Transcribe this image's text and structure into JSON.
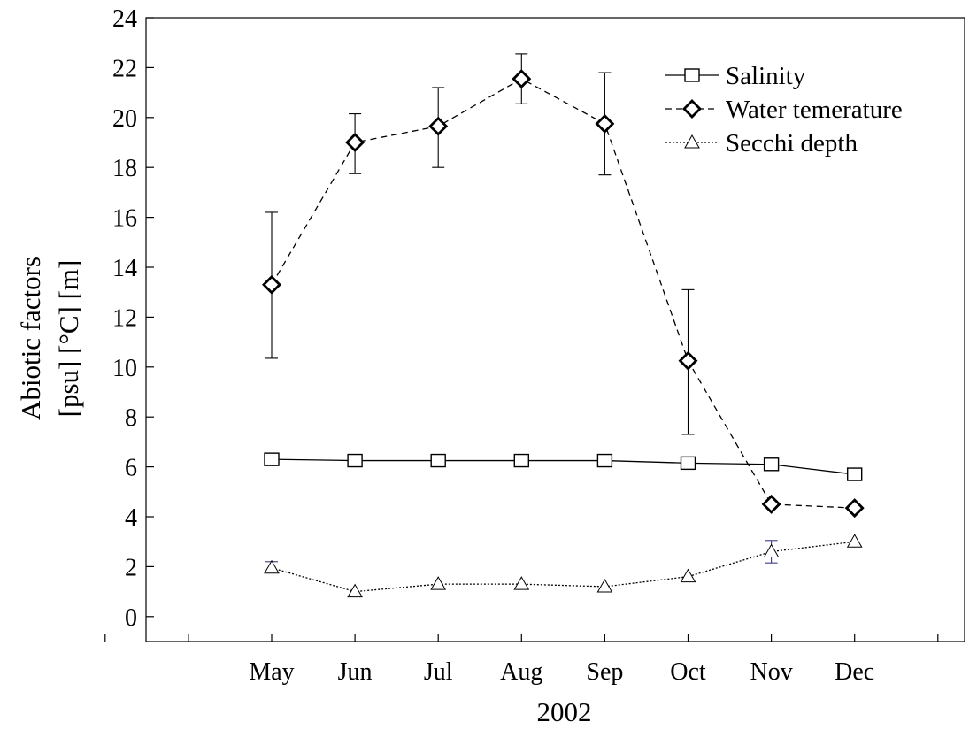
{
  "chart_data": {
    "type": "line",
    "xlabel": "2002",
    "ylabel_lines": [
      "Abiotic factors",
      "[psu] [°C] [m]"
    ],
    "categories": [
      "May",
      "Jun",
      "Jul",
      "Aug",
      "Sep",
      "Oct",
      "Nov",
      "Dec"
    ],
    "ylim": [
      -1,
      24
    ],
    "yticks": [
      0,
      2,
      4,
      6,
      8,
      10,
      12,
      14,
      16,
      18,
      20,
      22,
      24
    ],
    "grid": false,
    "legend_position": "top-right",
    "series": [
      {
        "name": "Salinity",
        "marker": "square",
        "line_style": "solid",
        "values": [
          6.3,
          6.25,
          6.25,
          6.25,
          6.25,
          6.15,
          6.1,
          5.7
        ],
        "errors": [
          null,
          null,
          null,
          null,
          null,
          null,
          null,
          null
        ]
      },
      {
        "name": "Water temerature",
        "marker": "diamond",
        "line_style": "dashed",
        "values": [
          13.3,
          19.0,
          19.65,
          21.55,
          19.75,
          10.25,
          4.5,
          4.35
        ],
        "errors": [
          [
            10.35,
            16.2
          ],
          [
            17.75,
            20.15
          ],
          [
            18.0,
            21.2
          ],
          [
            20.55,
            22.55
          ],
          [
            17.7,
            21.8
          ],
          [
            7.3,
            13.1
          ],
          null,
          null
        ]
      },
      {
        "name": "Secchi depth",
        "marker": "triangle",
        "line_style": "dotted",
        "values": [
          1.95,
          1.0,
          1.3,
          1.3,
          1.2,
          1.6,
          2.6,
          3.0
        ],
        "errors": [
          [
            1.75,
            2.2
          ],
          null,
          null,
          null,
          null,
          null,
          [
            2.15,
            3.05
          ],
          null
        ]
      }
    ]
  }
}
